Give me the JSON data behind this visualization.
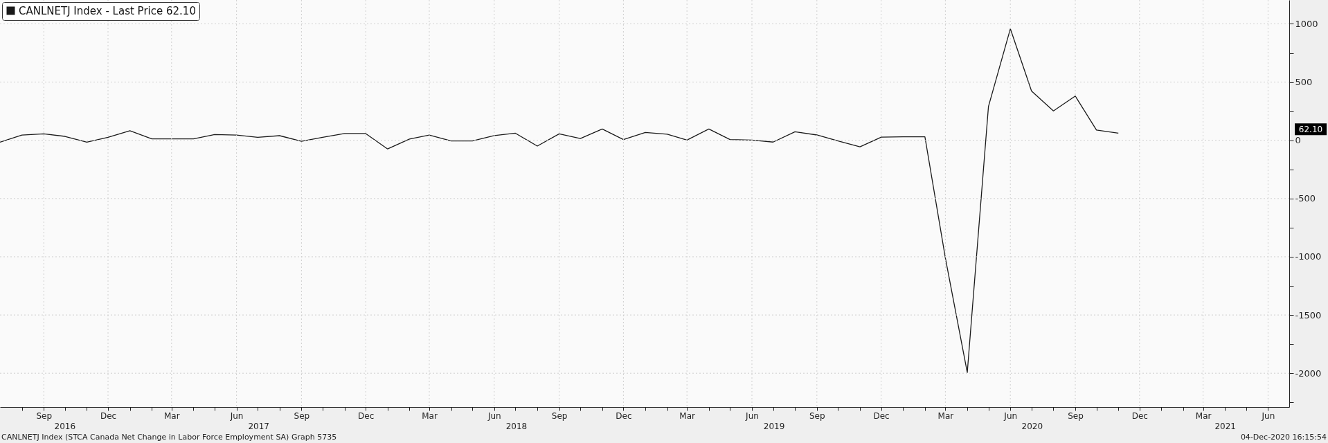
{
  "chart_data": {
    "type": "line",
    "x": [
      "2016-07",
      "2016-08",
      "2016-09",
      "2016-10",
      "2016-11",
      "2016-12",
      "2017-01",
      "2017-02",
      "2017-03",
      "2017-04",
      "2017-05",
      "2017-06",
      "2017-07",
      "2017-08",
      "2017-09",
      "2017-10",
      "2017-11",
      "2017-12",
      "2018-01",
      "2018-02",
      "2018-03",
      "2018-04",
      "2018-05",
      "2018-06",
      "2018-07",
      "2018-08",
      "2018-09",
      "2018-10",
      "2018-11",
      "2018-12",
      "2019-01",
      "2019-02",
      "2019-03",
      "2019-04",
      "2019-05",
      "2019-06",
      "2019-07",
      "2019-08",
      "2019-09",
      "2019-10",
      "2019-11",
      "2019-12",
      "2020-01",
      "2020-02",
      "2020-03",
      "2020-04",
      "2020-05",
      "2020-06",
      "2020-07",
      "2020-08",
      "2020-09",
      "2020-10",
      "2020-11"
    ],
    "series": [
      {
        "name": "CANLNETJ Index - Last Price 62.10",
        "color": "#1a1a1a",
        "values": [
          -16,
          45,
          56,
          34,
          -16,
          26,
          82,
          13,
          13,
          13,
          50,
          45,
          26,
          40,
          -8,
          26,
          58,
          58,
          -74,
          11,
          45,
          -5,
          -5,
          41,
          61,
          -49,
          56,
          15,
          97,
          7,
          68,
          53,
          2,
          97,
          7,
          2,
          -15,
          73,
          46,
          -5,
          -56,
          27,
          30,
          30,
          -1011,
          -1994,
          290,
          958,
          423,
          252,
          380,
          88,
          62.1
        ]
      }
    ],
    "xlim": [
      "2016-07-01",
      "2021-07-01"
    ],
    "xticks": [
      {
        "value": "2016-08-01",
        "label": null
      },
      {
        "value": "2016-09-01",
        "label": "Sep"
      },
      {
        "value": "2016-10-01",
        "label": null
      },
      {
        "value": "2016-11-01",
        "label": null
      },
      {
        "value": "2016-12-01",
        "label": "Dec"
      },
      {
        "value": "2017-01-01",
        "label": null
      },
      {
        "value": "2017-02-01",
        "label": null
      },
      {
        "value": "2017-03-01",
        "label": "Mar"
      },
      {
        "value": "2017-04-01",
        "label": null
      },
      {
        "value": "2017-05-01",
        "label": null
      },
      {
        "value": "2017-06-01",
        "label": "Jun"
      },
      {
        "value": "2017-07-01",
        "label": null
      },
      {
        "value": "2017-08-01",
        "label": null
      },
      {
        "value": "2017-09-01",
        "label": "Sep"
      },
      {
        "value": "2017-10-01",
        "label": null
      },
      {
        "value": "2017-11-01",
        "label": null
      },
      {
        "value": "2017-12-01",
        "label": "Dec"
      },
      {
        "value": "2018-01-01",
        "label": null
      },
      {
        "value": "2018-02-01",
        "label": null
      },
      {
        "value": "2018-03-01",
        "label": "Mar"
      },
      {
        "value": "2018-04-01",
        "label": null
      },
      {
        "value": "2018-05-01",
        "label": null
      },
      {
        "value": "2018-06-01",
        "label": "Jun"
      },
      {
        "value": "2018-07-01",
        "label": null
      },
      {
        "value": "2018-08-01",
        "label": null
      },
      {
        "value": "2018-09-01",
        "label": "Sep"
      },
      {
        "value": "2018-10-01",
        "label": null
      },
      {
        "value": "2018-11-01",
        "label": null
      },
      {
        "value": "2018-12-01",
        "label": "Dec"
      },
      {
        "value": "2019-01-01",
        "label": null
      },
      {
        "value": "2019-02-01",
        "label": null
      },
      {
        "value": "2019-03-01",
        "label": "Mar"
      },
      {
        "value": "2019-04-01",
        "label": null
      },
      {
        "value": "2019-05-01",
        "label": null
      },
      {
        "value": "2019-06-01",
        "label": "Jun"
      },
      {
        "value": "2019-07-01",
        "label": null
      },
      {
        "value": "2019-08-01",
        "label": null
      },
      {
        "value": "2019-09-01",
        "label": "Sep"
      },
      {
        "value": "2019-10-01",
        "label": null
      },
      {
        "value": "2019-11-01",
        "label": null
      },
      {
        "value": "2019-12-01",
        "label": "Dec"
      },
      {
        "value": "2020-01-01",
        "label": null
      },
      {
        "value": "2020-02-01",
        "label": null
      },
      {
        "value": "2020-03-01",
        "label": "Mar"
      },
      {
        "value": "2020-04-01",
        "label": null
      },
      {
        "value": "2020-05-01",
        "label": null
      },
      {
        "value": "2020-06-01",
        "label": "Jun"
      },
      {
        "value": "2020-07-01",
        "label": null
      },
      {
        "value": "2020-08-01",
        "label": null
      },
      {
        "value": "2020-09-01",
        "label": "Sep"
      },
      {
        "value": "2020-10-01",
        "label": null
      },
      {
        "value": "2020-11-01",
        "label": null
      },
      {
        "value": "2020-12-01",
        "label": "Dec"
      },
      {
        "value": "2021-01-01",
        "label": null
      },
      {
        "value": "2021-02-01",
        "label": null
      },
      {
        "value": "2021-03-01",
        "label": "Mar"
      },
      {
        "value": "2021-04-01",
        "label": null
      },
      {
        "value": "2021-05-01",
        "label": null
      },
      {
        "value": "2021-06-01",
        "label": "Jun"
      }
    ],
    "ylim": [
      -2290,
      1205
    ],
    "yticks": [
      {
        "value": -2250,
        "label": null
      },
      -2000,
      {
        "value": -1750,
        "label": null
      },
      -1500,
      {
        "value": -1250,
        "label": null
      },
      -1000,
      {
        "value": -750,
        "label": null
      },
      -500,
      {
        "value": -250,
        "label": null
      },
      0,
      {
        "value": 250,
        "label": null
      },
      500,
      {
        "value": 750,
        "label": null
      },
      1000
    ],
    "grid": true,
    "legend": "top left",
    "marker": "none",
    "line_style": "solid",
    "annotations": [
      "2016",
      "2017",
      "2018",
      "2019",
      "2020",
      "2021",
      "62.10",
      "CANLNETJ Index (STCA Canada Net Change in Labor Force Employment SA) Graph 5735",
      "04-Dec-2020 16:15:54"
    ]
  }
}
